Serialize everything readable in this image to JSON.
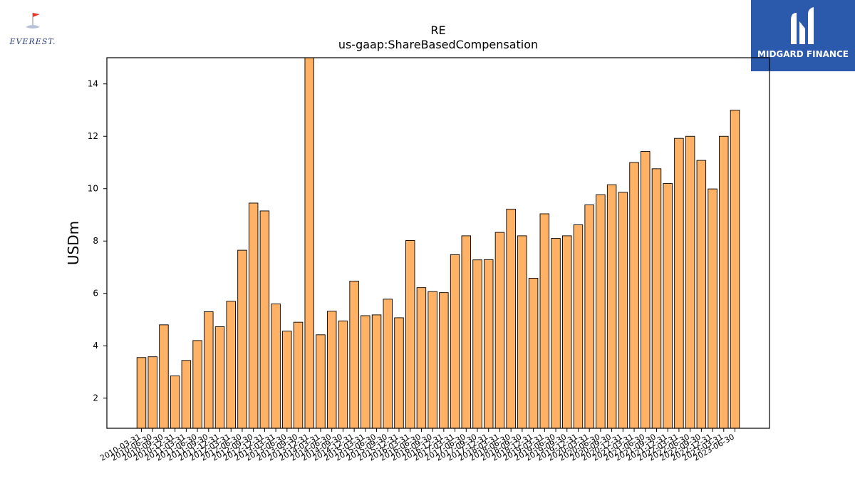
{
  "logos": {
    "left": "EVEREST.",
    "right": "MIDGARD FINANCE"
  },
  "chart_data": {
    "type": "bar",
    "title": "RE",
    "subtitle": "us-gaap:ShareBasedCompensation",
    "xlabel": "",
    "ylabel": "USDm",
    "ylim": [
      0.85,
      15.0
    ],
    "yticks": [
      2,
      4,
      6,
      8,
      10,
      12,
      14
    ],
    "grid": false,
    "bar_color": "#ffb266",
    "edge_color": "#000000",
    "categories": [
      "2010-03-31",
      "2010-06-30",
      "2010-09-30",
      "2010-12-31",
      "2011-03-31",
      "2011-06-30",
      "2011-09-30",
      "2011-12-31",
      "2012-03-31",
      "2012-06-30",
      "2012-09-30",
      "2012-12-31",
      "2013-03-31",
      "2013-06-30",
      "2013-09-30",
      "2013-12-31",
      "2014-03-31",
      "2014-06-30",
      "2014-09-30",
      "2014-12-31",
      "2015-03-31",
      "2015-06-30",
      "2015-09-30",
      "2015-12-31",
      "2016-03-31",
      "2016-06-30",
      "2016-09-30",
      "2016-12-31",
      "2017-03-31",
      "2017-06-30",
      "2017-09-30",
      "2017-12-31",
      "2018-03-31",
      "2018-06-30",
      "2018-09-30",
      "2018-12-31",
      "2019-03-31",
      "2019-06-30",
      "2019-09-30",
      "2019-12-31",
      "2020-03-31",
      "2020-06-30",
      "2020-09-30",
      "2020-12-31",
      "2021-03-31",
      "2021-06-30",
      "2021-09-30",
      "2021-12-31",
      "2022-03-31",
      "2022-06-30",
      "2022-09-30",
      "2022-12-31",
      "2023-03-31",
      "2023-06-30"
    ],
    "values": [
      3.55,
      3.58,
      4.8,
      2.85,
      3.44,
      4.2,
      5.3,
      4.73,
      5.7,
      7.65,
      9.45,
      9.15,
      5.6,
      4.56,
      4.9,
      15.0,
      4.42,
      5.32,
      4.95,
      6.47,
      5.15,
      5.18,
      5.78,
      5.07,
      8.02,
      6.22,
      6.07,
      6.03,
      7.48,
      8.2,
      7.28,
      7.29,
      8.33,
      9.22,
      8.2,
      6.58,
      9.04,
      8.1,
      8.2,
      8.62,
      9.38,
      9.77,
      10.15,
      9.86,
      11.0,
      11.42,
      10.76,
      10.2,
      11.92,
      12.0,
      11.08,
      9.99,
      12.0,
      13.0
    ]
  }
}
